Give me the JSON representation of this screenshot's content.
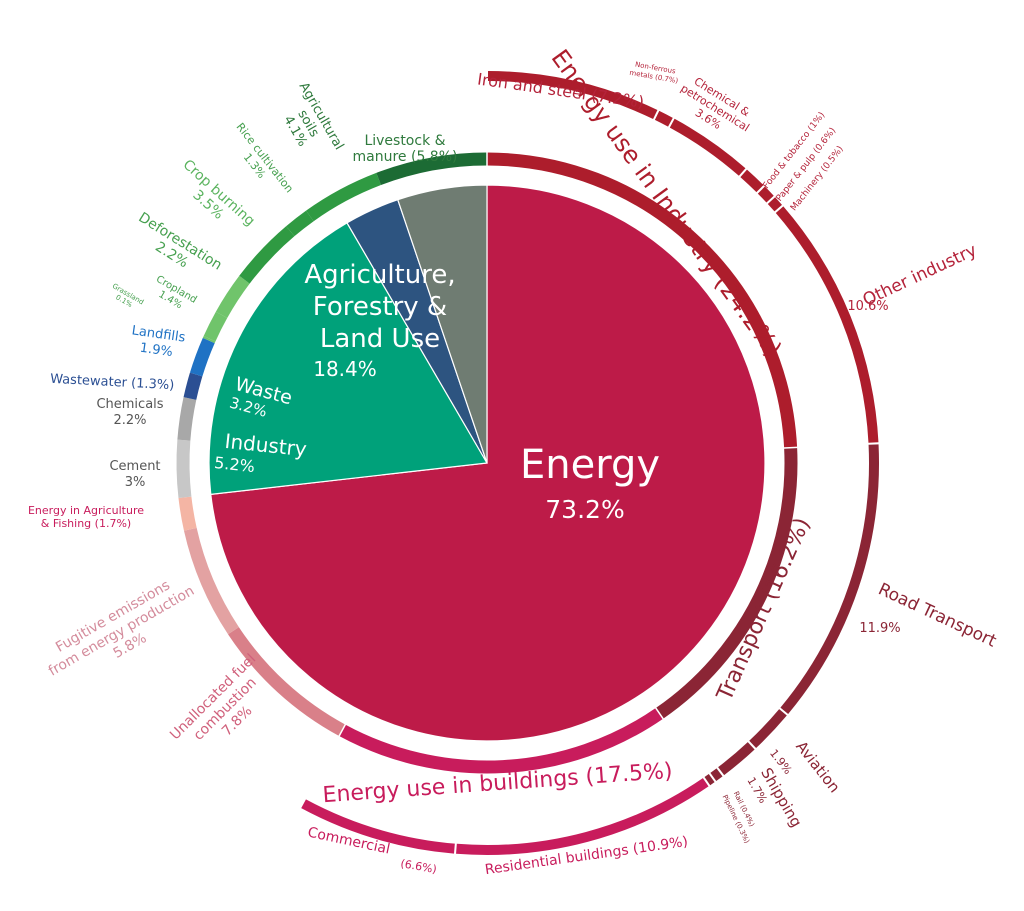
{
  "chart_data": {
    "type": "pie",
    "colors": {
      "energy": "#bd1b48",
      "afolu": "#00a17a",
      "waste": "#2d5480",
      "industry": "#6f7c72",
      "industry_ring": "#ad1d2c",
      "transport_ring": "#8b2535",
      "buildings_ring": "#c81c5c",
      "ag_dark": "#1c6b34",
      "ag_mid": "#2f9a42",
      "ag_light": "#70c46b",
      "landfill": "#1f72c4",
      "wastewater": "#2b4f93",
      "chem_ring": "#a8a8a8",
      "cement_ring": "#c7c7c7",
      "energy_ag_ring": "#f4b5a4",
      "fugitive_ring": "#e3a2a2",
      "unallocated_ring": "#d98089"
    },
    "sectors": [
      {
        "name": "Energy",
        "value": "73.2%",
        "share": 73.2
      },
      {
        "name": "Agriculture, Forestry & Land Use",
        "value": "18.4%",
        "share": 18.4
      },
      {
        "name": "Waste",
        "value": "3.2%",
        "share": 3.2
      },
      {
        "name": "Industry",
        "value": "5.2%",
        "share": 5.2
      }
    ],
    "middle_ring": [
      {
        "label": "Energy use in Industry (24.2%)",
        "share": 24.2
      },
      {
        "label": "Transport (16.2%)",
        "share": 16.2
      },
      {
        "label": "Energy use in buildings (17.5%)",
        "share": 17.5
      }
    ],
    "subsectors": [
      {
        "id": "iron_steel",
        "label": "Iron and steel (7.2%)",
        "share": 7.2
      },
      {
        "id": "non_ferrous",
        "label_lines": [
          "Non-ferrous",
          "metals (0.7%)"
        ],
        "share": 0.7
      },
      {
        "id": "chemical",
        "label_lines": [
          "Chemical &",
          "petrochemical",
          "3.6%"
        ],
        "share": 3.6
      },
      {
        "id": "food",
        "label": "Food & tobacco (1%)",
        "share": 1.0
      },
      {
        "id": "paper",
        "label": "Paper & pulp (0.6%)",
        "share": 0.6
      },
      {
        "id": "machinery",
        "label": "Machinery (0.5%)",
        "share": 0.5
      },
      {
        "id": "other_industry",
        "label": "Other industry",
        "value": "10.6%",
        "share": 10.6
      },
      {
        "id": "road",
        "label": "Road Transport",
        "value": "11.9%",
        "share": 11.9
      },
      {
        "id": "aviation",
        "label": "Aviation",
        "value": "1.9%",
        "share": 1.9
      },
      {
        "id": "shipping",
        "label": "Shipping",
        "value": "1.7%",
        "share": 1.7
      },
      {
        "id": "rail",
        "label": "Rail (0.4%)",
        "share": 0.4
      },
      {
        "id": "pipeline",
        "label": "Pipeline (0.3%)",
        "share": 0.3
      },
      {
        "id": "residential",
        "label": "Residential buildings (10.9%)",
        "share": 10.9
      },
      {
        "id": "commercial",
        "label": "Commercial",
        "value": "(6.6%)",
        "share": 6.6
      },
      {
        "id": "unallocated",
        "label_lines": [
          "Unallocated fuel",
          "combustion",
          "7.8%"
        ],
        "share": 7.8
      },
      {
        "id": "fugitive",
        "label_lines": [
          "Fugitive emissions",
          "from energy production",
          "5.8%"
        ],
        "share": 5.8
      },
      {
        "id": "energy_ag",
        "label_lines": [
          "Energy in Agriculture",
          "& Fishing (1.7%)"
        ],
        "share": 1.7
      },
      {
        "id": "cement",
        "label_lines": [
          "Cement",
          "3%"
        ],
        "share": 3.0
      },
      {
        "id": "chemicals",
        "label_lines": [
          "Chemicals",
          "2.2%"
        ],
        "share": 2.2
      },
      {
        "id": "wastewater",
        "label": "Wastewater (1.3%)",
        "share": 1.3
      },
      {
        "id": "landfills",
        "label_lines": [
          "Landfills",
          "1.9%"
        ],
        "share": 1.9
      },
      {
        "id": "grassland",
        "label_lines": [
          "Grassland",
          "0.1%"
        ],
        "share": 0.1
      },
      {
        "id": "cropland",
        "label_lines": [
          "Cropland",
          "1.4%"
        ],
        "share": 1.4
      },
      {
        "id": "deforestation",
        "label_lines": [
          "Deforestation",
          "2.2%"
        ],
        "share": 2.2
      },
      {
        "id": "crop_burning",
        "label_lines": [
          "Crop burning",
          "3.5%"
        ],
        "share": 3.5
      },
      {
        "id": "rice",
        "label_lines": [
          "Rice cultivation",
          "1.3%"
        ],
        "share": 1.3
      },
      {
        "id": "ag_soils",
        "label_lines": [
          "Agricultural",
          "soils",
          "4.1%"
        ],
        "share": 4.1
      },
      {
        "id": "livestock",
        "label_lines": [
          "Livestock &",
          "manure (5.8%)"
        ],
        "share": 5.8
      }
    ]
  }
}
